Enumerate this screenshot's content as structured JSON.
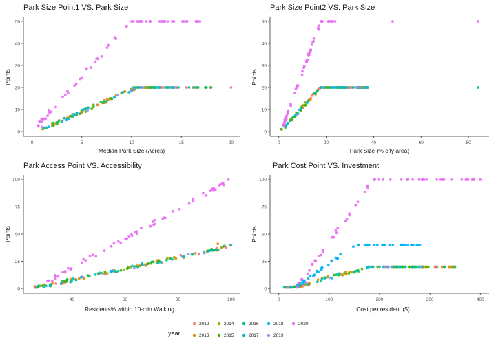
{
  "legend": {
    "title": "year",
    "entries": [
      {
        "label": "2012",
        "color": "#F8766D"
      },
      {
        "label": "2013",
        "color": "#D89000"
      },
      {
        "label": "2014",
        "color": "#A3A500"
      },
      {
        "label": "2015",
        "color": "#39B600"
      },
      {
        "label": "2016",
        "color": "#00BF7D"
      },
      {
        "label": "2017",
        "color": "#00BFC4"
      },
      {
        "label": "2018",
        "color": "#00B0F6"
      },
      {
        "label": "2019",
        "color": "#9590FF"
      },
      {
        "label": "2020",
        "color": "#E76BF3"
      }
    ]
  },
  "chart_data": [
    {
      "type": "scatter",
      "title": "Park Size Point1 VS. Park Size",
      "xlabel": "Median Park Size (Acres)",
      "ylabel": "Points",
      "xlim": [
        0,
        20
      ],
      "ylim": [
        0,
        50
      ],
      "xticks": [
        0,
        5,
        10,
        15,
        20
      ],
      "yticks": [
        0,
        10,
        20,
        30,
        40,
        50
      ],
      "grid": false,
      "legend_position": "bottom",
      "series_models": {
        "main": {
          "slope": 2.0,
          "intercept": -1,
          "cap": 20,
          "x_range": [
            1,
            18
          ]
        },
        "2020": {
          "slope": 5.0,
          "intercept": 0,
          "cap": 50,
          "x_range": [
            0.5,
            17
          ]
        }
      },
      "sample_points": [
        {
          "year": "2012",
          "x": 20.0,
          "y": 20
        },
        {
          "year": "2016",
          "x": 18.0,
          "y": 20
        },
        {
          "year": "2020",
          "x": 1.0,
          "y": 2
        },
        {
          "year": "2020",
          "x": 10.0,
          "y": 50
        },
        {
          "year": "2020",
          "x": 16.5,
          "y": 50
        },
        {
          "year": "2014",
          "x": 5.0,
          "y": 9
        },
        {
          "year": "2015",
          "x": 8.0,
          "y": 15
        }
      ]
    },
    {
      "type": "scatter",
      "title": "Park Size Point2 VS. Park Size",
      "xlabel": "Park Size (% city area)",
      "ylabel": "Points",
      "xlim": [
        0,
        85
      ],
      "ylim": [
        0,
        50
      ],
      "xticks": [
        0,
        20,
        40,
        60,
        80
      ],
      "yticks": [
        0,
        10,
        20,
        30,
        40,
        50
      ],
      "grid": false,
      "legend_position": "bottom",
      "series_models": {
        "main": {
          "slope": 1.2,
          "intercept": -1,
          "cap": 20,
          "x_range": [
            1,
            38
          ]
        },
        "2020": {
          "slope": 3.0,
          "intercept": -3,
          "cap": 50,
          "x_range": [
            2,
            25
          ]
        }
      },
      "sample_points": [
        {
          "year": "2020",
          "x": 48.0,
          "y": 50
        },
        {
          "year": "2020",
          "x": 84.0,
          "y": 50
        },
        {
          "year": "2016",
          "x": 84.0,
          "y": 20
        },
        {
          "year": "2017",
          "x": 37.0,
          "y": 20
        },
        {
          "year": "2013",
          "x": 35.0,
          "y": 20
        }
      ]
    },
    {
      "type": "scatter",
      "title": "Park Access Point VS. Accessibility",
      "xlabel": "Residents% within 10-min Walking",
      "ylabel": "Points",
      "xlim": [
        25,
        100
      ],
      "ylim": [
        0,
        100
      ],
      "xticks": [
        40,
        60,
        80,
        100
      ],
      "yticks": [
        0,
        25,
        50,
        75,
        100
      ],
      "grid": false,
      "legend_position": "bottom",
      "series_models": {
        "main": {
          "slope": 0.52,
          "intercept": -13,
          "x_range": [
            26,
            100
          ]
        },
        "2020": {
          "slope": 1.35,
          "intercept": -35,
          "x_range": [
            30,
            100
          ]
        }
      },
      "sample_points": [
        {
          "year": "2012",
          "x": 26.0,
          "y": 2
        },
        {
          "year": "2020",
          "x": 99.0,
          "y": 100
        },
        {
          "year": "2017",
          "x": 100.0,
          "y": 40
        },
        {
          "year": "2013",
          "x": 95.0,
          "y": 41
        }
      ]
    },
    {
      "type": "scatter",
      "title": "Park Cost Point VS. Investment",
      "xlabel": "Cost per resident ($)",
      "ylabel": "Points",
      "xlim": [
        0,
        400
      ],
      "ylim": [
        0,
        100
      ],
      "xticks": [
        0,
        100,
        200,
        300,
        400
      ],
      "yticks": [
        0,
        25,
        50,
        75,
        100
      ],
      "grid": false,
      "legend_position": "bottom",
      "series_models": {
        "main": {
          "slope": 0.125,
          "intercept": -2.5,
          "cap": 20,
          "x_range": [
            10,
            350
          ]
        },
        "2018": {
          "slope": 0.33,
          "intercept": -10,
          "cap": 40,
          "x_range": [
            15,
            280
          ]
        },
        "2020": {
          "slope": 0.65,
          "intercept": -22,
          "cap": 100,
          "x_range": [
            30,
            400
          ]
        }
      },
      "sample_points": [
        {
          "year": "2020",
          "x": 400.0,
          "y": 100
        },
        {
          "year": "2020",
          "x": 320.0,
          "y": 100
        },
        {
          "year": "2013",
          "x": 345.0,
          "y": 20
        },
        {
          "year": "2012",
          "x": 310.0,
          "y": 20
        },
        {
          "year": "2018",
          "x": 280.0,
          "y": 40
        }
      ]
    }
  ]
}
